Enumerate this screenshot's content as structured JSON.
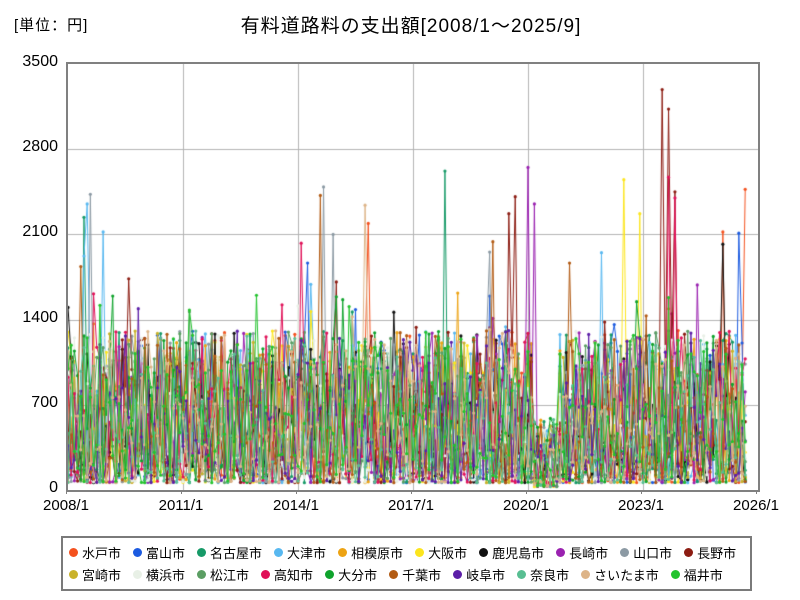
{
  "header": {
    "unit_label": "[単位：円]",
    "title": "有料道路料の支出額[2008/1～2025/9]"
  },
  "chart_data": {
    "type": "line",
    "title": "有料道路料の支出額[2008/1～2025/9]",
    "ylabel": "円",
    "x_start": "2008/1",
    "x_end": "2025/9",
    "n_points": 213,
    "x_axis": {
      "tick_labels": [
        "2008/1",
        "2011/1",
        "2014/1",
        "2017/1",
        "2020/1",
        "2023/1",
        "2026/1"
      ],
      "tick_month_index": [
        0,
        36,
        72,
        108,
        144,
        180,
        216
      ],
      "total_months": 216
    },
    "y_axis": {
      "min": 0,
      "max": 3500,
      "tick_values": [
        0,
        700,
        1400,
        2100,
        2800,
        3500
      ],
      "tick_labels": [
        "0",
        "700",
        "1400",
        "2100",
        "2800",
        "3500"
      ]
    },
    "grid": true,
    "grid_color": "#b3b3b3",
    "axis_color": "#808080",
    "legend_position": "bottom",
    "marker": "circle",
    "series": [
      {
        "name": "水戸市",
        "color": "#F4511E",
        "seed": 101
      },
      {
        "name": "富山市",
        "color": "#1C5BE0",
        "seed": 202
      },
      {
        "name": "名古屋市",
        "color": "#179A68",
        "seed": 303
      },
      {
        "name": "大津市",
        "color": "#58B8F0",
        "seed": 404
      },
      {
        "name": "相模原市",
        "color": "#EDA313",
        "seed": 505
      },
      {
        "name": "大阪市",
        "color": "#FCE51D",
        "seed": 606
      },
      {
        "name": "鹿児島市",
        "color": "#111111",
        "seed": 707
      },
      {
        "name": "長崎市",
        "color": "#9A22B0",
        "seed": 808
      },
      {
        "name": "山口市",
        "color": "#8C9AA4",
        "seed": 909
      },
      {
        "name": "長野市",
        "color": "#8C1C12",
        "seed": 1010
      },
      {
        "name": "宮崎市",
        "color": "#C9B22A",
        "seed": 1111
      },
      {
        "name": "横浜市",
        "color": "#E8F0E6",
        "seed": 1212
      },
      {
        "name": "松江市",
        "color": "#5B9E63",
        "seed": 1313
      },
      {
        "name": "高知市",
        "color": "#E01158",
        "seed": 1414
      },
      {
        "name": "大分市",
        "color": "#0FA32C",
        "seed": 1515
      },
      {
        "name": "千葉市",
        "color": "#B25B14",
        "seed": 1616
      },
      {
        "name": "岐阜市",
        "color": "#5C1EA8",
        "seed": 1717
      },
      {
        "name": "奈良市",
        "color": "#58BE92",
        "seed": 1818
      },
      {
        "name": "さいたま市",
        "color": "#DDB488",
        "seed": 1919
      },
      {
        "name": "福井市",
        "color": "#23C32E",
        "seed": 2020
      }
    ],
    "generator": {
      "base": 60,
      "amp": 1250,
      "pow": 1.7,
      "spike_prob": 0.055,
      "spike_amp": 850,
      "clamp": 2600,
      "dip": {
        "start": 146,
        "end": 153,
        "factor": 0.45
      }
    },
    "outliers": [
      {
        "series": "鹿児島市",
        "index": 0,
        "value": 1500
      },
      {
        "series": "名古屋市",
        "index": 5,
        "value": 2240
      },
      {
        "series": "大津市",
        "index": 6,
        "value": 2350
      },
      {
        "series": "山口市",
        "index": 7,
        "value": 2430
      },
      {
        "series": "大津市",
        "index": 11,
        "value": 2120
      },
      {
        "series": "千葉市",
        "index": 79,
        "value": 2420
      },
      {
        "series": "山口市",
        "index": 80,
        "value": 2490
      },
      {
        "series": "山口市",
        "index": 83,
        "value": 2100
      },
      {
        "series": "さいたま市",
        "index": 93,
        "value": 2340
      },
      {
        "series": "水戸市",
        "index": 94,
        "value": 2190
      },
      {
        "series": "名古屋市",
        "index": 118,
        "value": 2620
      },
      {
        "series": "千葉市",
        "index": 133,
        "value": 2040
      },
      {
        "series": "長野市",
        "index": 138,
        "value": 2270
      },
      {
        "series": "長野市",
        "index": 140,
        "value": 2410
      },
      {
        "series": "長崎市",
        "index": 144,
        "value": 2650
      },
      {
        "series": "長崎市",
        "index": 146,
        "value": 2350
      },
      {
        "series": "大津市",
        "index": 167,
        "value": 1950
      },
      {
        "series": "大阪市",
        "index": 174,
        "value": 2550
      },
      {
        "series": "大阪市",
        "index": 179,
        "value": 2270
      },
      {
        "series": "長野市",
        "index": 186,
        "value": 3290
      },
      {
        "series": "長野市",
        "index": 188,
        "value": 3130
      },
      {
        "series": "高知市",
        "index": 188,
        "value": 2570
      },
      {
        "series": "長野市",
        "index": 190,
        "value": 2450
      },
      {
        "series": "高知市",
        "index": 190,
        "value": 2400
      },
      {
        "series": "鹿児島市",
        "index": 205,
        "value": 2020
      },
      {
        "series": "水戸市",
        "index": 205,
        "value": 2120
      },
      {
        "series": "富山市",
        "index": 210,
        "value": 2110
      },
      {
        "series": "水戸市",
        "index": 212,
        "value": 2470
      }
    ]
  }
}
